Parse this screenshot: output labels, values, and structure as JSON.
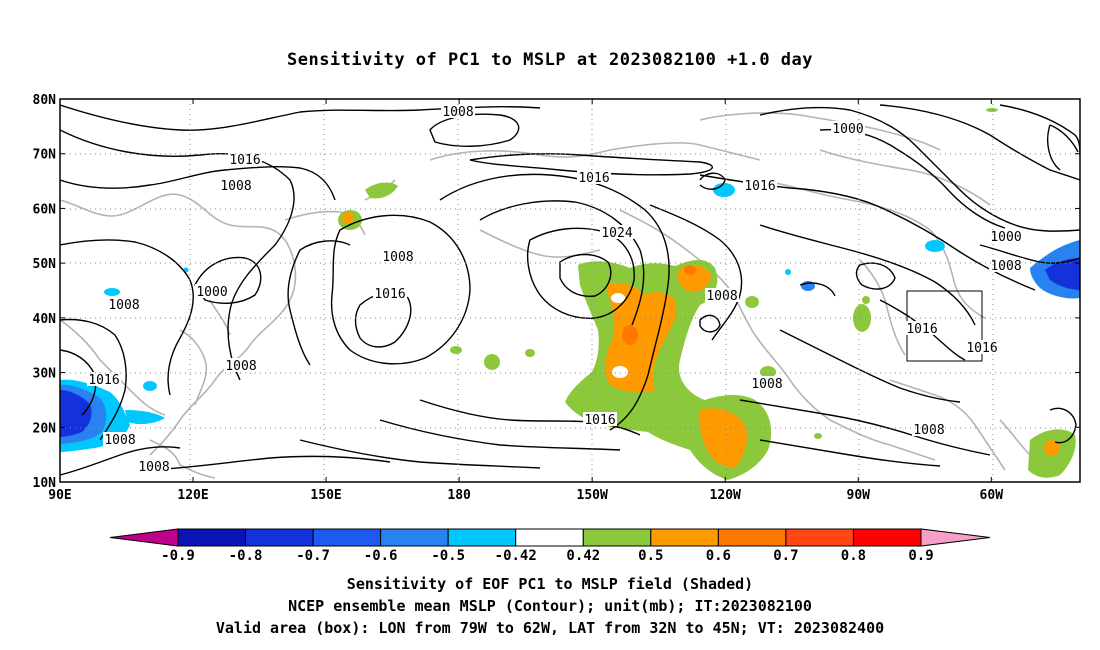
{
  "title": "Sensitivity of PC1 to MSLP at 2023082100 +1.0 day",
  "map": {
    "projection": "lat-lon",
    "lon_range": [
      "90E",
      "40W"
    ],
    "lat_range": [
      "10N",
      "80N"
    ],
    "lat_ticks": [
      "80N",
      "70N",
      "60N",
      "50N",
      "40N",
      "30N",
      "20N",
      "10N"
    ],
    "lon_ticks": [
      "90E",
      "120E",
      "150E",
      "180",
      "150W",
      "120W",
      "90W",
      "60W"
    ],
    "gridlines": "dotted",
    "contour_labels": [
      "1008",
      "1016",
      "1008",
      "1000",
      "1016",
      "1024",
      "1016",
      "1008",
      "1016",
      "1000",
      "1008",
      "1016",
      "1016",
      "1008",
      "1016",
      "1008",
      "1008",
      "1008",
      "1016",
      "1008",
      "1008",
      "1000",
      "1008"
    ],
    "valid_box": {
      "lon": [
        "79W",
        "62W"
      ],
      "lat": [
        "32N",
        "45N"
      ]
    }
  },
  "colorbar": {
    "labels": [
      "-0.9",
      "-0.8",
      "-0.7",
      "-0.6",
      "-0.5",
      "-0.42",
      "0.42",
      "0.5",
      "0.6",
      "0.7",
      "0.8",
      "0.9"
    ],
    "colors": [
      "#c0008c",
      "#0a14b4",
      "#1432dc",
      "#1e5af0",
      "#2882f0",
      "#00c8ff",
      "#ffffff",
      "#8cc83c",
      "#ff9b00",
      "#ff7800",
      "#ff4614",
      "#ff0000",
      "#f5a0c8"
    ]
  },
  "caption": {
    "line1": "Sensitivity of EOF PC1 to MSLP field (Shaded)",
    "line2": "NCEP ensemble mean MSLP (Contour); unit(mb); IT:2023082100",
    "line3": "Valid area (box): LON from 79W to 62W, LAT from 32N to 45N; VT: 2023082400"
  }
}
